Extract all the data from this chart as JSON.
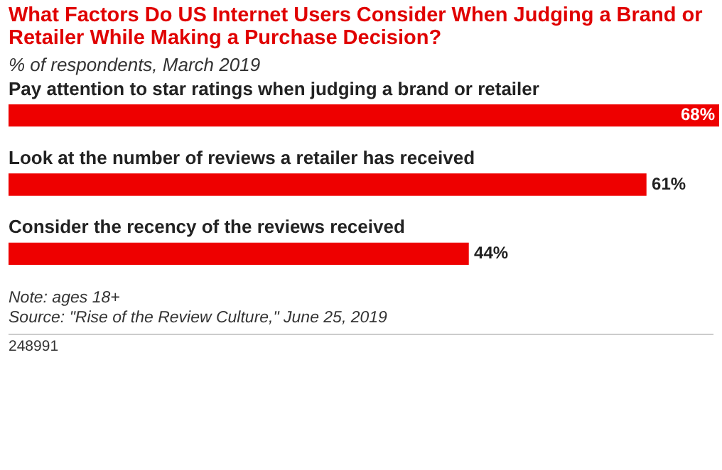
{
  "chart_data": {
    "type": "bar",
    "orientation": "horizontal",
    "title": "What Factors Do US Internet Users Consider When Judging a Brand or Retailer While Making a Purchase Decision?",
    "subtitle": "% of respondents, March 2019",
    "categories": [
      "Pay attention to star ratings when judging a brand or retailer",
      "Look at the number of reviews a retailer has received",
      "Consider the recency of the reviews received"
    ],
    "values": [
      68,
      61,
      44
    ],
    "color": "#ee0000",
    "value_labels": [
      "68%",
      "61%",
      "44%"
    ],
    "legend": false,
    "annotations": [
      "Note: ages 18+",
      "Source: \"Rise of the Review Culture,\" June 25, 2019",
      "248991"
    ]
  }
}
